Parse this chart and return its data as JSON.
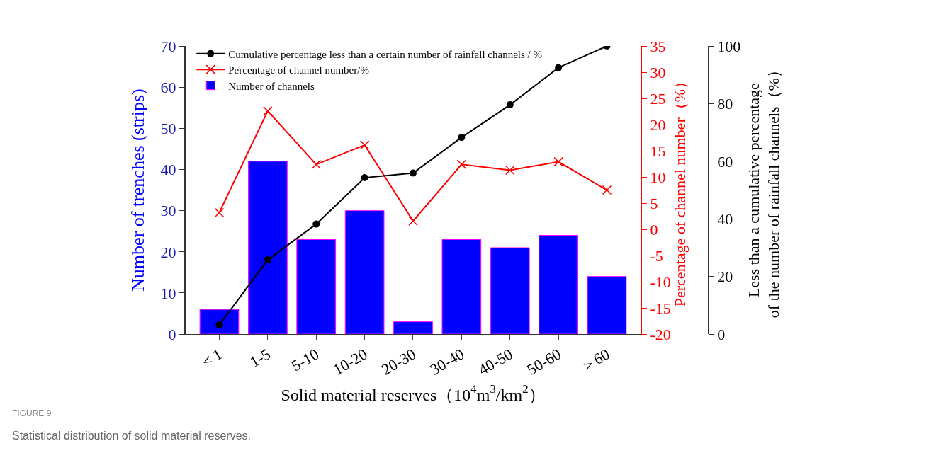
{
  "chart_data": {
    "type": "bar",
    "xlabel": "Solid material reserves（10$^{4}$m$^{3}$/km$^{2}$）",
    "ylabel": "Number of trenches (strips)",
    "y2label": "Percentage of channel number（%）",
    "y3label": "Less than a cumulative percentage\nof the number of rainfall channels（%）",
    "categories": [
      "＜1",
      "1-5",
      "5-10",
      "10-20",
      "20-30",
      "30-40",
      "40-50",
      "50-60",
      "＞60"
    ],
    "series": [
      {
        "name": "Cumulative percentage less than a certain number of rainfall channels / %",
        "type": "line",
        "axis": "y3",
        "color": "#000000",
        "marker": "circle",
        "values": [
          3.2,
          25.8,
          38.2,
          54.3,
          55.9,
          68.3,
          79.6,
          92.5,
          100
        ]
      },
      {
        "name": "Percentage of channel number/%",
        "type": "line",
        "axis": "y2",
        "color": "#ff0000",
        "marker": "cross",
        "values": [
          3.2,
          22.6,
          12.4,
          16.1,
          1.6,
          12.4,
          11.3,
          12.9,
          7.5
        ]
      },
      {
        "name": "Number of channels",
        "color": "#0000ff",
        "values": [
          6,
          42,
          23,
          30,
          3,
          23,
          21,
          24,
          14
        ]
      }
    ],
    "ylim": [
      0,
      70
    ],
    "yticks": [
      0,
      10,
      20,
      30,
      40,
      50,
      60,
      70
    ],
    "y2lim": [
      -20,
      35
    ],
    "y2ticks": [
      -20,
      -15,
      -10,
      -5,
      0,
      5,
      10,
      15,
      20,
      25,
      30,
      35
    ],
    "y3lim": [
      0,
      100
    ],
    "y3ticks": [
      0,
      20,
      40,
      60,
      80,
      100
    ],
    "legend": "top left",
    "annotations": [
      "FIGURE 9",
      "Statistical distribution of solid material reserves."
    ]
  }
}
